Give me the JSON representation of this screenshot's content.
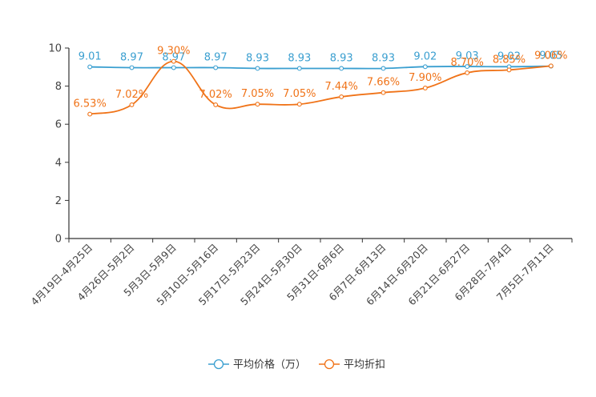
{
  "chart_data": {
    "type": "line",
    "title": "",
    "xlabel": "",
    "ylabel": "",
    "ylim": [
      0,
      10
    ],
    "yticks": [
      0,
      2,
      4,
      6,
      8,
      10
    ],
    "grid": false,
    "legend_position": "bottom-center",
    "categories": [
      "4月19日-4月25日",
      "4月26日-5月2日",
      "5月3日-5月9日",
      "5月10日-5月16日",
      "5月17日-5月23日",
      "5月24日-5月30日",
      "5月31日-6月6日",
      "6月7日-6月13日",
      "6月14日-6月20日",
      "6月21日-6月27日",
      "6月28日-7月4日",
      "7月5日-7月11日"
    ],
    "series": [
      {
        "name": "平均价格（万）",
        "color": "#3a9fd0",
        "values": [
          9.01,
          8.97,
          8.97,
          8.97,
          8.93,
          8.93,
          8.93,
          8.93,
          9.02,
          9.03,
          9.02,
          9.05
        ],
        "labels": [
          "9.01",
          "8.97",
          "8.97",
          "8.97",
          "8.93",
          "8.93",
          "8.93",
          "8.93",
          "9.02",
          "9.03",
          "9.02",
          "9.05"
        ]
      },
      {
        "name": "平均折扣",
        "color": "#f07318",
        "values": [
          6.53,
          7.02,
          9.3,
          7.02,
          7.05,
          7.05,
          7.44,
          7.66,
          7.9,
          8.7,
          8.85,
          9.06
        ],
        "labels": [
          "6.53%",
          "7.02%",
          "9.30%",
          "7.02%",
          "7.05%",
          "7.05%",
          "7.44%",
          "7.66%",
          "7.90%",
          "8.70%",
          "8.85%",
          "9.06%"
        ]
      }
    ]
  }
}
